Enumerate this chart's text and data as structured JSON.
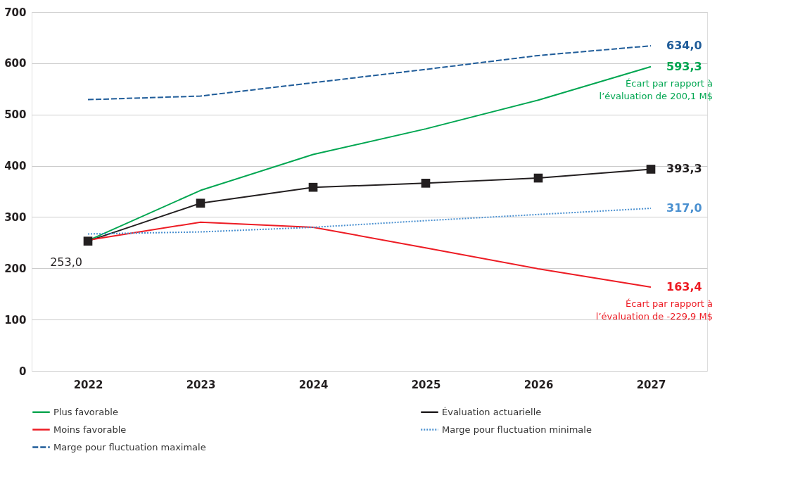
{
  "chart_data": {
    "type": "line",
    "categories": [
      "2022",
      "2023",
      "2024",
      "2025",
      "2026",
      "2027"
    ],
    "ylim": [
      0,
      700
    ],
    "yticks": [
      0,
      100,
      200,
      300,
      400,
      500,
      600,
      700
    ],
    "grid": "y",
    "legend": "bottom",
    "series": [
      {
        "name": "Plus favorable",
        "color": "#00a651",
        "line_style": "solid",
        "values": [
          254,
          352,
          422,
          472,
          528,
          593.3
        ],
        "value_labels": [
          null,
          null,
          null,
          null,
          null,
          "593,3"
        ]
      },
      {
        "name": "Évaluation actuarielle",
        "color": "#231f20",
        "line_style": "solid",
        "marker": "square",
        "values": [
          253.0,
          327,
          358,
          366,
          376,
          393.3
        ],
        "value_labels": [
          "253,0",
          null,
          null,
          null,
          null,
          "393,3"
        ]
      },
      {
        "name": "Moins favorable",
        "color": "#ed1c24",
        "line_style": "solid",
        "values": [
          255,
          290,
          280,
          240,
          199,
          163.4
        ],
        "value_labels": [
          null,
          null,
          null,
          null,
          null,
          "163,4"
        ]
      },
      {
        "name": "Marge pour fluctuation minimale",
        "color": "#4a90d0",
        "line_style": "dotted",
        "values": [
          267,
          271,
          280,
          293,
          305,
          317.0
        ],
        "value_labels": [
          null,
          null,
          null,
          null,
          null,
          "317,0"
        ]
      },
      {
        "name": "Marge pour fluctuation maximale",
        "color": "#1f5c99",
        "line_style": "dashed",
        "values": [
          529,
          536,
          562,
          588,
          615,
          634.0
        ],
        "value_labels": [
          null,
          null,
          null,
          null,
          null,
          "634,0"
        ]
      }
    ],
    "annotations": [
      {
        "text": "Écart par rapport à\nl’évaluation de 200,1 M$",
        "x": "2027",
        "y": 593.3
      },
      {
        "text": "Écart par rapport à\nl’évaluation de -229,9 M$",
        "x": "2027",
        "y": 163.4
      }
    ]
  }
}
